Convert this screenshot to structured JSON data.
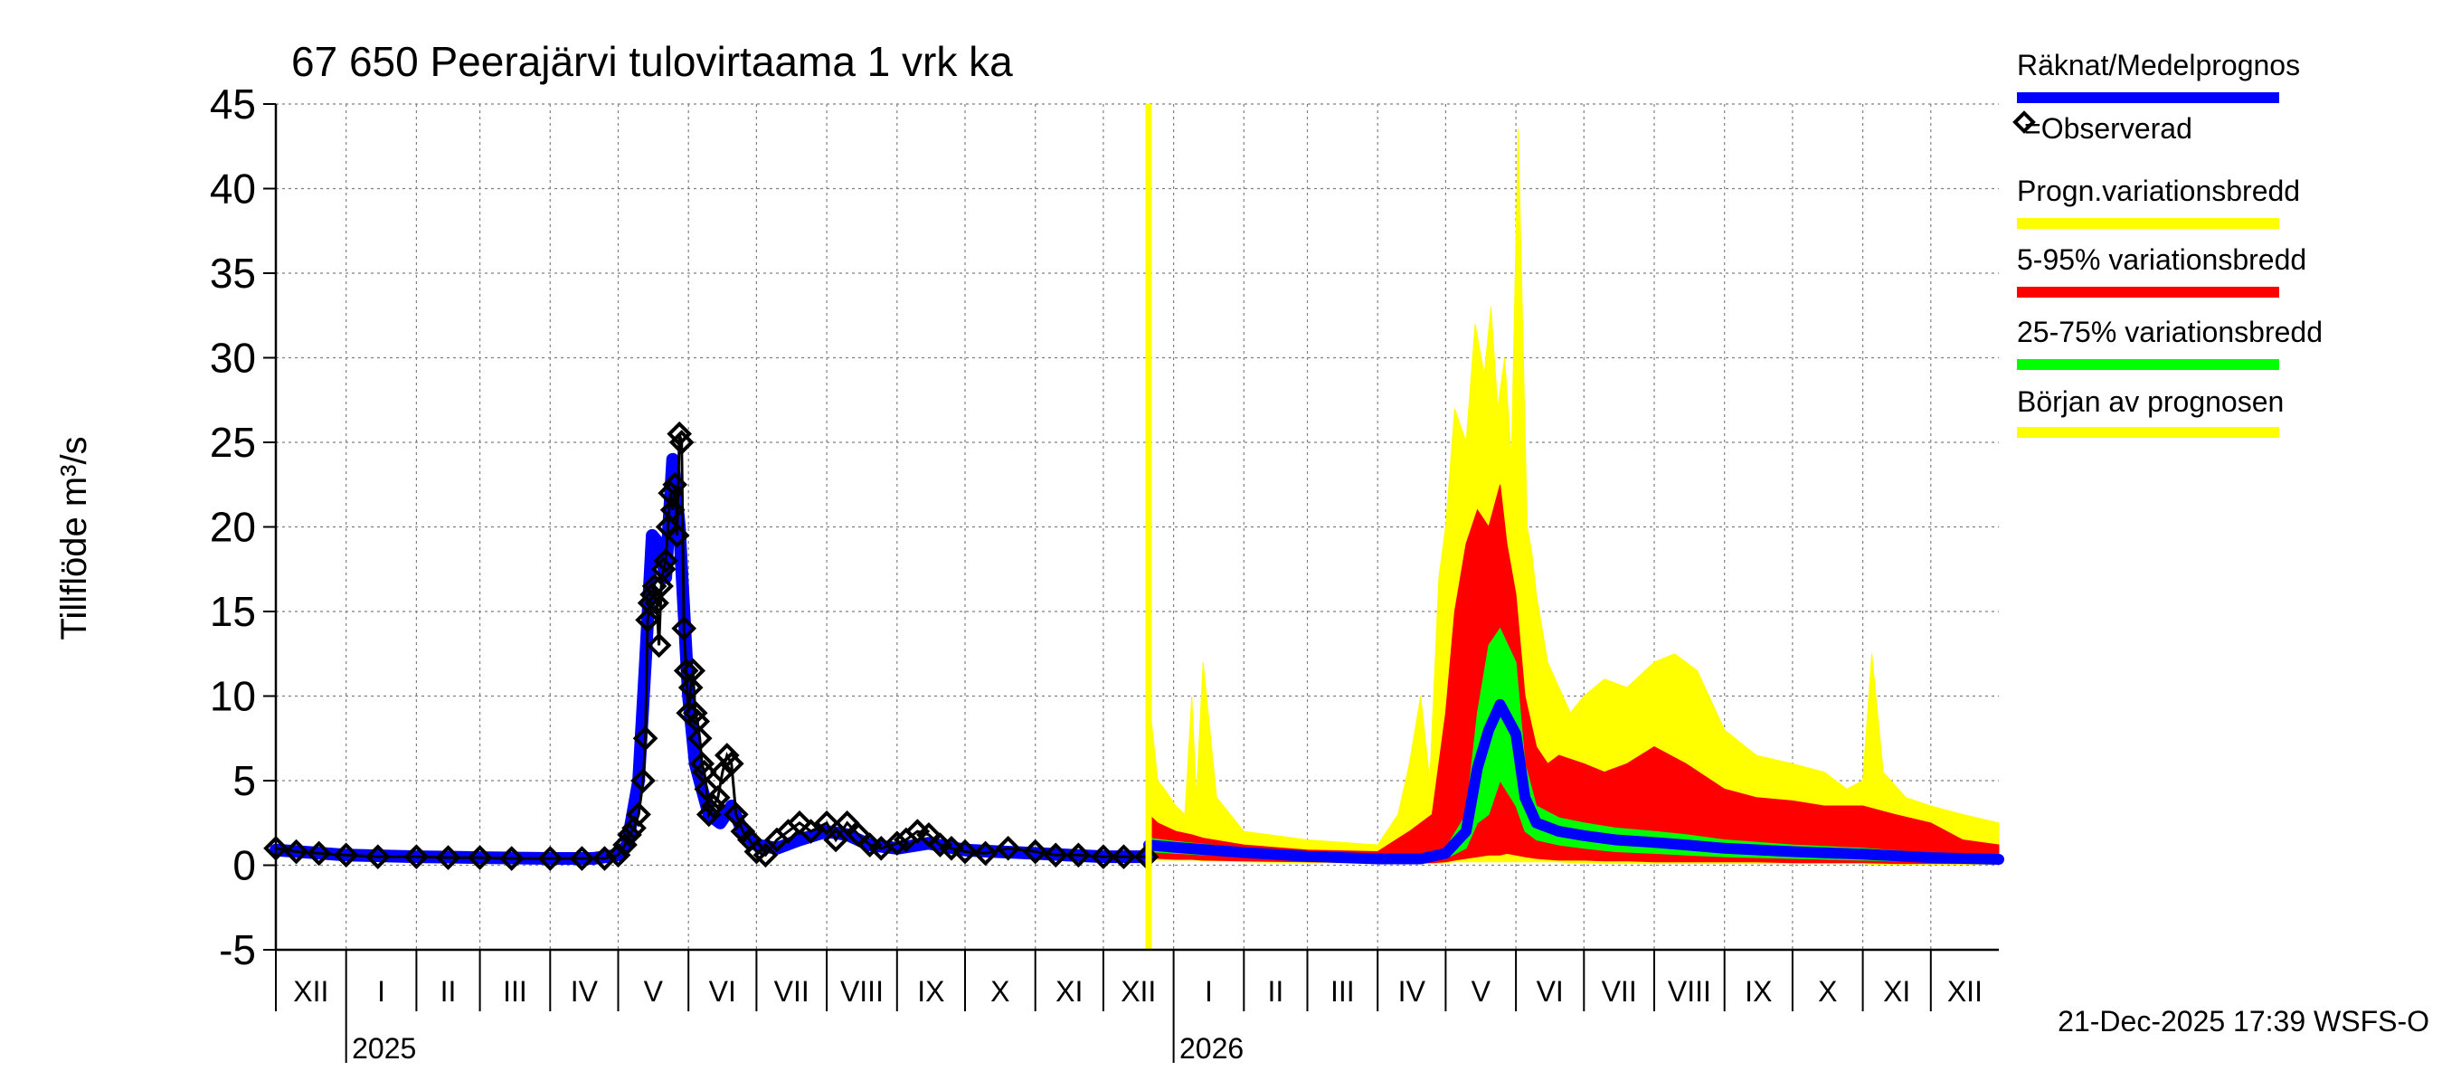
{
  "chart_data": {
    "type": "area",
    "title": "67 650 Peerajärvi tulovirtaama 1 vrk ka",
    "ylabel": "Tillflöde m³/s",
    "xlabel": "",
    "ylim": [
      -5,
      45
    ],
    "yticks": [
      -5,
      0,
      5,
      10,
      15,
      20,
      25,
      30,
      35,
      40,
      45
    ],
    "grid": true,
    "legend_position": "right",
    "x_axis": {
      "start": "2024-12-01",
      "end": "2026-12-31",
      "month_labels": [
        "XII",
        "I",
        "II",
        "III",
        "IV",
        "V",
        "VI",
        "VII",
        "VIII",
        "IX",
        "X",
        "XI",
        "XII",
        "I",
        "II",
        "III",
        "IV",
        "V",
        "VI",
        "VII",
        "VIII",
        "IX",
        "X",
        "XI",
        "XII"
      ],
      "year_labels": [
        {
          "label": "2025",
          "at": "2025-01-01"
        },
        {
          "label": "2026",
          "at": "2026-01-01"
        }
      ]
    },
    "forecast_start": "2025-12-21",
    "legend": [
      {
        "label": "Räknat/Medelprognos",
        "color": "#0000ff"
      },
      {
        "label": "=Observerad",
        "color": "#000000",
        "marker": "diamond"
      },
      {
        "label": "Progn.variationsbredd",
        "color": "#ffff00"
      },
      {
        "label": "5-95% variationsbredd",
        "color": "#ff0000"
      },
      {
        "label": "25-75% variationsbredd",
        "color": "#00ff00"
      },
      {
        "label": "Början av prognosen",
        "color": "#ffff00"
      }
    ],
    "colors": {
      "simulated": "#0000ff",
      "observed": "#000000",
      "band_full": "#ffff00",
      "band_5_95": "#ff0000",
      "band_25_75": "#00ff00",
      "forecast_start": "#ffff00",
      "grid": "#808080"
    },
    "series": [
      {
        "name": "Räknat/Medelprognos",
        "x": [
          "2024-12-01",
          "2025-01-01",
          "2025-02-01",
          "2025-03-01",
          "2025-04-01",
          "2025-04-20",
          "2025-05-01",
          "2025-05-05",
          "2025-05-10",
          "2025-05-13",
          "2025-05-16",
          "2025-05-19",
          "2025-05-22",
          "2025-05-25",
          "2025-05-28",
          "2025-06-01",
          "2025-06-04",
          "2025-06-07",
          "2025-06-10",
          "2025-06-15",
          "2025-06-20",
          "2025-06-25",
          "2025-07-01",
          "2025-07-10",
          "2025-07-20",
          "2025-08-01",
          "2025-08-10",
          "2025-08-20",
          "2025-09-01",
          "2025-09-15",
          "2025-10-01",
          "2025-10-15",
          "2025-11-01",
          "2025-11-15",
          "2025-12-01",
          "2025-12-21"
        ],
        "values": [
          0.9,
          0.6,
          0.5,
          0.45,
          0.4,
          0.4,
          0.6,
          1.2,
          5.0,
          12.0,
          19.5,
          19.0,
          17.0,
          24.0,
          20.0,
          10.0,
          6.0,
          4.5,
          3.0,
          2.5,
          3.5,
          2.0,
          1.2,
          1.0,
          1.5,
          2.0,
          1.8,
          1.2,
          1.0,
          1.3,
          0.9,
          0.8,
          0.7,
          0.6,
          0.5,
          0.5
        ]
      },
      {
        "name": "=Observerad",
        "x": [
          "2024-12-01",
          "2024-12-10",
          "2024-12-20",
          "2025-01-01",
          "2025-01-15",
          "2025-02-01",
          "2025-02-15",
          "2025-03-01",
          "2025-03-15",
          "2025-04-01",
          "2025-04-15",
          "2025-04-25",
          "2025-05-01",
          "2025-05-04",
          "2025-05-06",
          "2025-05-08",
          "2025-05-10",
          "2025-05-12",
          "2025-05-13",
          "2025-05-14",
          "2025-05-15",
          "2025-05-16",
          "2025-05-17",
          "2025-05-18",
          "2025-05-19",
          "2025-05-20",
          "2025-05-21",
          "2025-05-22",
          "2025-05-23",
          "2025-05-24",
          "2025-05-25",
          "2025-05-26",
          "2025-05-27",
          "2025-05-28",
          "2025-05-29",
          "2025-05-30",
          "2025-05-31",
          "2025-06-01",
          "2025-06-02",
          "2025-06-03",
          "2025-06-04",
          "2025-06-05",
          "2025-06-06",
          "2025-06-07",
          "2025-06-08",
          "2025-06-09",
          "2025-06-10",
          "2025-06-12",
          "2025-06-14",
          "2025-06-16",
          "2025-06-18",
          "2025-06-20",
          "2025-06-22",
          "2025-06-25",
          "2025-06-28",
          "2025-07-01",
          "2025-07-05",
          "2025-07-10",
          "2025-07-15",
          "2025-07-20",
          "2025-07-25",
          "2025-08-01",
          "2025-08-05",
          "2025-08-10",
          "2025-08-15",
          "2025-08-20",
          "2025-08-25",
          "2025-09-01",
          "2025-09-05",
          "2025-09-10",
          "2025-09-15",
          "2025-09-20",
          "2025-09-25",
          "2025-10-01",
          "2025-10-10",
          "2025-10-20",
          "2025-11-01",
          "2025-11-10",
          "2025-11-20",
          "2025-12-01",
          "2025-12-10",
          "2025-12-20"
        ],
        "values": [
          1.0,
          0.8,
          0.7,
          0.6,
          0.5,
          0.5,
          0.45,
          0.45,
          0.4,
          0.4,
          0.4,
          0.4,
          0.6,
          1.2,
          1.8,
          2.2,
          3.0,
          5.0,
          7.5,
          14.5,
          15.5,
          16.0,
          16.5,
          15.5,
          13.0,
          16.5,
          17.5,
          18.0,
          20.0,
          22.0,
          21.0,
          22.5,
          19.5,
          25.5,
          25.0,
          14.0,
          11.5,
          9.0,
          10.5,
          11.5,
          9.0,
          8.5,
          7.5,
          6.0,
          5.5,
          4.5,
          3.0,
          3.5,
          4.0,
          5.5,
          6.5,
          6.0,
          3.0,
          2.0,
          1.5,
          0.8,
          0.6,
          1.5,
          2.0,
          2.5,
          2.0,
          2.5,
          1.5,
          2.5,
          1.8,
          1.2,
          1.0,
          1.3,
          1.5,
          2.0,
          1.8,
          1.2,
          1.0,
          0.8,
          0.7,
          1.0,
          0.8,
          0.6,
          0.6,
          0.5,
          0.5,
          0.5
        ]
      },
      {
        "name": "Progn.variationsbredd",
        "x": [
          "2025-12-21",
          "2025-12-25",
          "2025-12-28",
          "2026-01-02",
          "2026-01-06",
          "2026-01-09",
          "2026-01-11",
          "2026-01-14",
          "2026-01-20",
          "2026-02-01",
          "2026-03-01",
          "2026-04-01",
          "2026-04-10",
          "2026-04-15",
          "2026-04-20",
          "2026-04-24",
          "2026-04-28",
          "2026-05-01",
          "2026-05-05",
          "2026-05-10",
          "2026-05-14",
          "2026-05-18",
          "2026-05-21",
          "2026-05-24",
          "2026-05-27",
          "2026-05-30",
          "2026-06-02",
          "2026-06-06",
          "2026-06-08",
          "2026-06-10",
          "2026-06-15",
          "2026-06-20",
          "2026-06-25",
          "2026-07-01",
          "2026-07-10",
          "2026-07-20",
          "2026-08-01",
          "2026-08-10",
          "2026-08-15",
          "2026-08-20",
          "2026-09-01",
          "2026-09-15",
          "2026-10-01",
          "2026-10-15",
          "2026-10-25",
          "2026-11-01",
          "2026-11-05",
          "2026-11-10",
          "2026-11-20",
          "2026-12-01",
          "2026-12-15",
          "2026-12-31"
        ],
        "lower": [
          0.3,
          0.3,
          0.3,
          0.3,
          0.3,
          0.3,
          0.3,
          0.25,
          0.25,
          0.2,
          0.15,
          0.1,
          0.1,
          0.1,
          0.1,
          0.1,
          0.1,
          0.15,
          0.2,
          0.2,
          0.2,
          0.2,
          0.2,
          0.2,
          0.2,
          0.2,
          0.2,
          0.2,
          0.2,
          0.2,
          0.2,
          0.2,
          0.15,
          0.15,
          0.1,
          0.1,
          0.1,
          0.1,
          0.1,
          0.1,
          0.1,
          0.1,
          0.1,
          0.1,
          0.1,
          0.1,
          0.05,
          0.05,
          0.05,
          0.05,
          0.05,
          0.05
        ],
        "upper": [
          10.0,
          5.0,
          4.5,
          3.5,
          3.0,
          10.0,
          4.0,
          12.0,
          4.0,
          2.0,
          1.5,
          1.2,
          3.0,
          6.0,
          10.0,
          5.0,
          17.0,
          20.0,
          27.0,
          25.0,
          32.0,
          29.0,
          33.0,
          27.0,
          30.0,
          24.0,
          43.5,
          20.0,
          18.5,
          16.0,
          12.0,
          10.5,
          9.0,
          10.0,
          11.0,
          10.5,
          12.0,
          12.5,
          12.0,
          11.5,
          8.0,
          6.5,
          6.0,
          5.5,
          4.5,
          5.0,
          12.5,
          5.5,
          4.0,
          3.5,
          3.0,
          2.5
        ]
      },
      {
        "name": "5-95% variationsbredd",
        "x": [
          "2025-12-21",
          "2025-12-25",
          "2026-01-02",
          "2026-01-09",
          "2026-01-14",
          "2026-02-01",
          "2026-03-01",
          "2026-04-01",
          "2026-04-15",
          "2026-04-25",
          "2026-05-01",
          "2026-05-05",
          "2026-05-10",
          "2026-05-15",
          "2026-05-20",
          "2026-05-25",
          "2026-05-28",
          "2026-06-01",
          "2026-06-05",
          "2026-06-10",
          "2026-06-15",
          "2026-06-20",
          "2026-07-01",
          "2026-07-10",
          "2026-07-20",
          "2026-08-01",
          "2026-08-15",
          "2026-09-01",
          "2026-09-15",
          "2026-10-01",
          "2026-10-15",
          "2026-11-01",
          "2026-11-15",
          "2026-12-01",
          "2026-12-15",
          "2026-12-31"
        ],
        "lower": [
          0.4,
          0.4,
          0.35,
          0.35,
          0.3,
          0.25,
          0.2,
          0.15,
          0.15,
          0.15,
          0.2,
          0.3,
          0.4,
          0.5,
          0.6,
          0.6,
          0.7,
          0.6,
          0.5,
          0.4,
          0.35,
          0.3,
          0.3,
          0.25,
          0.25,
          0.2,
          0.2,
          0.2,
          0.2,
          0.15,
          0.15,
          0.15,
          0.1,
          0.1,
          0.1,
          0.1
        ],
        "upper": [
          3.0,
          2.5,
          2.0,
          1.8,
          1.6,
          1.2,
          0.9,
          0.8,
          2.0,
          3.0,
          9.0,
          15.0,
          19.0,
          21.0,
          20.0,
          22.5,
          19.0,
          16.0,
          10.0,
          7.0,
          6.0,
          6.5,
          6.0,
          5.5,
          6.0,
          7.0,
          6.0,
          4.5,
          4.0,
          3.8,
          3.5,
          3.5,
          3.0,
          2.5,
          1.5,
          1.2
        ]
      },
      {
        "name": "25-75% variationsbredd",
        "x": [
          "2025-12-21",
          "2026-01-02",
          "2026-02-01",
          "2026-03-01",
          "2026-04-01",
          "2026-04-20",
          "2026-05-01",
          "2026-05-10",
          "2026-05-15",
          "2026-05-20",
          "2026-05-25",
          "2026-06-01",
          "2026-06-05",
          "2026-06-10",
          "2026-06-20",
          "2026-07-01",
          "2026-07-15",
          "2026-08-01",
          "2026-08-15",
          "2026-09-01",
          "2026-10-01",
          "2026-11-01",
          "2026-12-01",
          "2026-12-31"
        ],
        "lower": [
          0.8,
          0.7,
          0.5,
          0.35,
          0.25,
          0.25,
          0.4,
          1.0,
          2.5,
          3.0,
          5.0,
          3.5,
          2.0,
          1.5,
          1.2,
          1.0,
          0.8,
          0.7,
          0.6,
          0.5,
          0.4,
          0.3,
          0.2,
          0.2
        ],
        "upper": [
          1.6,
          1.4,
          1.0,
          0.7,
          0.5,
          0.5,
          1.0,
          3.0,
          9.0,
          13.0,
          14.0,
          12.0,
          6.0,
          3.5,
          2.8,
          2.5,
          2.2,
          2.0,
          1.8,
          1.5,
          1.2,
          1.0,
          0.7,
          0.5
        ]
      }
    ]
  },
  "footer": {
    "timestamp": "21-Dec-2025 17:39 WSFS-O"
  }
}
